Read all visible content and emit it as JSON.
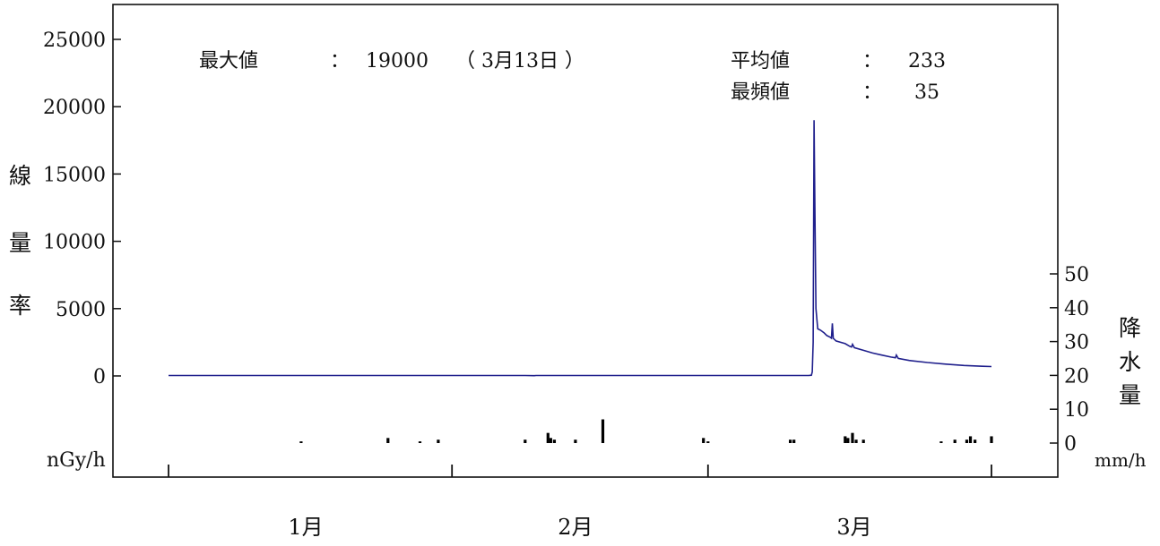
{
  "chart_data": {
    "type": "line",
    "colors": {
      "dose_line": "#1f1f8c",
      "rain_bars": "#000000",
      "axes": "#111111"
    },
    "stats": {
      "max_label": "最大値",
      "max_sep": "：",
      "max_value": "19000",
      "max_date": "（ 3月13日 ）",
      "mean_label": "平均値",
      "mean_sep": "：",
      "mean_value": "233",
      "mode_label": "最頻値",
      "mode_sep": "：",
      "mode_value": "35"
    },
    "y_left": {
      "label_chars": [
        "線",
        "量",
        "率"
      ],
      "unit": "nGy/h",
      "ylim": [
        0,
        25000
      ],
      "ticks": [
        0,
        5000,
        10000,
        15000,
        20000,
        25000
      ],
      "tick_labels": [
        "0",
        "5000",
        "10000",
        "15000",
        "20000",
        "25000"
      ]
    },
    "y_right": {
      "label_chars": [
        "降",
        "水",
        "量"
      ],
      "unit": "mm/h",
      "ylim": [
        0,
        50
      ],
      "ticks": [
        0,
        10,
        20,
        30,
        40,
        50
      ],
      "tick_labels": [
        "0",
        "10",
        "20",
        "30",
        "40",
        "50"
      ]
    },
    "x": {
      "start": "1月1日",
      "end": "3月31日",
      "month_labels": [
        "1月",
        "2月",
        "3月"
      ],
      "month_label_days": [
        16,
        45.5,
        76
      ],
      "boundary_days": [
        1,
        32,
        60,
        91
      ]
    },
    "series": [
      {
        "kind": "dose_rate",
        "points": [
          [
            1,
            33
          ],
          [
            20,
            33
          ],
          [
            40,
            33
          ],
          [
            41,
            18
          ],
          [
            41.2,
            33
          ],
          [
            60,
            33
          ],
          [
            71,
            33
          ],
          [
            71.3,
            50
          ],
          [
            71.4,
            300
          ],
          [
            71.5,
            2500
          ],
          [
            71.6,
            19000
          ],
          [
            71.7,
            12000
          ],
          [
            71.8,
            5000
          ],
          [
            72,
            3500
          ],
          [
            72.3,
            3400
          ],
          [
            72.7,
            3200
          ],
          [
            73,
            3000
          ],
          [
            73.3,
            2900
          ],
          [
            73.5,
            2800
          ],
          [
            73.6,
            3900
          ],
          [
            73.7,
            2800
          ],
          [
            74,
            2600
          ],
          [
            75,
            2400
          ],
          [
            75.5,
            2200
          ],
          [
            75.7,
            2150
          ],
          [
            75.8,
            2350
          ],
          [
            76,
            2100
          ],
          [
            77,
            1900
          ],
          [
            78,
            1700
          ],
          [
            79,
            1550
          ],
          [
            80,
            1400
          ],
          [
            80.5,
            1350
          ],
          [
            80.6,
            1550
          ],
          [
            80.8,
            1300
          ],
          [
            82,
            1150
          ],
          [
            84,
            1000
          ],
          [
            86,
            880
          ],
          [
            88,
            780
          ],
          [
            90,
            720
          ],
          [
            91,
            700
          ]
        ]
      },
      {
        "kind": "precipitation",
        "bars": [
          [
            15.5,
            0.5
          ],
          [
            25,
            1.5
          ],
          [
            28.5,
            0.5
          ],
          [
            30.5,
            1
          ],
          [
            40,
            1
          ],
          [
            42.5,
            3
          ],
          [
            42.8,
            1.5
          ],
          [
            43.2,
            1
          ],
          [
            45.5,
            1
          ],
          [
            48.5,
            7
          ],
          [
            59.5,
            1.5
          ],
          [
            60,
            0.5
          ],
          [
            69,
            1
          ],
          [
            69.4,
            1
          ],
          [
            75,
            2
          ],
          [
            75.3,
            1.5
          ],
          [
            75.8,
            3
          ],
          [
            76.2,
            1
          ],
          [
            77,
            1
          ],
          [
            85.5,
            0.5
          ],
          [
            87,
            1
          ],
          [
            88.3,
            1
          ],
          [
            88.7,
            2
          ],
          [
            89.2,
            1
          ],
          [
            91,
            2
          ]
        ]
      }
    ]
  }
}
